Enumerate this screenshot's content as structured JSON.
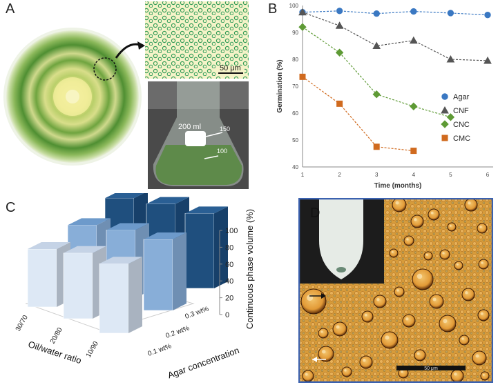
{
  "panels": {
    "a": {
      "letter": "A",
      "scale_bar": "50 μm",
      "flask_label_volume": "200 ml",
      "flask_mark_150": "150",
      "flask_mark_100": "100"
    },
    "b": {
      "letter": "B"
    },
    "c": {
      "letter": "C"
    },
    "d": {
      "letter": "D",
      "scale_bar": "50 μm"
    }
  },
  "colors": {
    "agar": "#3a78c2",
    "cnf": "#555555",
    "cnc": "#5e9a35",
    "cmc": "#d06a1e",
    "bar_light": "#dde8f5",
    "bar_mid": "#88aed8",
    "bar_dark": "#1f4f7e",
    "micro_bg": "#d79b3a",
    "algae_green": "#5f9a35"
  },
  "chart_data": [
    {
      "type": "line",
      "panel": "B",
      "xlabel": "Time (months)",
      "ylabel": "Germination (%)",
      "xlim": [
        1,
        6
      ],
      "ylim": [
        40,
        100
      ],
      "x_ticks": [
        1,
        2,
        3,
        4,
        5,
        6
      ],
      "y_ticks": [
        40,
        50,
        60,
        70,
        80,
        90,
        100
      ],
      "legend_position": "right",
      "series": [
        {
          "name": "Agar",
          "marker": "circle",
          "color": "#3a78c2",
          "points": [
            [
              1,
              97.5
            ],
            [
              2,
              98
            ],
            [
              3,
              97
            ],
            [
              4,
              97.8
            ],
            [
              5,
              97.2
            ],
            [
              6,
              96.5
            ]
          ]
        },
        {
          "name": "CNF",
          "marker": "triangle",
          "color": "#555555",
          "points": [
            [
              1,
              97.5
            ],
            [
              2,
              92.5
            ],
            [
              3,
              85
            ],
            [
              4,
              87
            ],
            [
              5,
              80
            ],
            [
              6,
              79.5
            ]
          ]
        },
        {
          "name": "CNC",
          "marker": "diamond",
          "color": "#5e9a35",
          "points": [
            [
              1,
              92
            ],
            [
              2,
              82.5
            ],
            [
              3,
              67
            ],
            [
              4,
              62.5
            ],
            [
              5,
              58.5
            ]
          ]
        },
        {
          "name": "CMC",
          "marker": "square",
          "color": "#d06a1e",
          "points": [
            [
              1,
              73.5
            ],
            [
              2,
              63.5
            ],
            [
              3,
              47.5
            ],
            [
              4,
              46
            ]
          ]
        }
      ]
    },
    {
      "type": "bar",
      "panel": "C",
      "zlabel": "Continuous phase volume (%)",
      "xlabel": "Oil/water ratio",
      "ylabel": "Agar concentration",
      "oil_water_ratios": [
        "30/70",
        "20/80",
        "10/90"
      ],
      "agar_concentrations": [
        "0.1 wt%",
        "0.2 wt%",
        "0.3 wt%"
      ],
      "z_ticks": [
        0,
        20,
        40,
        60,
        80,
        100
      ],
      "zlim": [
        0,
        100
      ],
      "series": [
        {
          "name": "0.1 wt%",
          "values": [
            75,
            85,
            90
          ]
        },
        {
          "name": "0.2 wt%",
          "values": [
            80,
            88,
            92
          ]
        },
        {
          "name": "0.3 wt%",
          "values": [
            90,
            95,
            97
          ]
        }
      ]
    }
  ]
}
